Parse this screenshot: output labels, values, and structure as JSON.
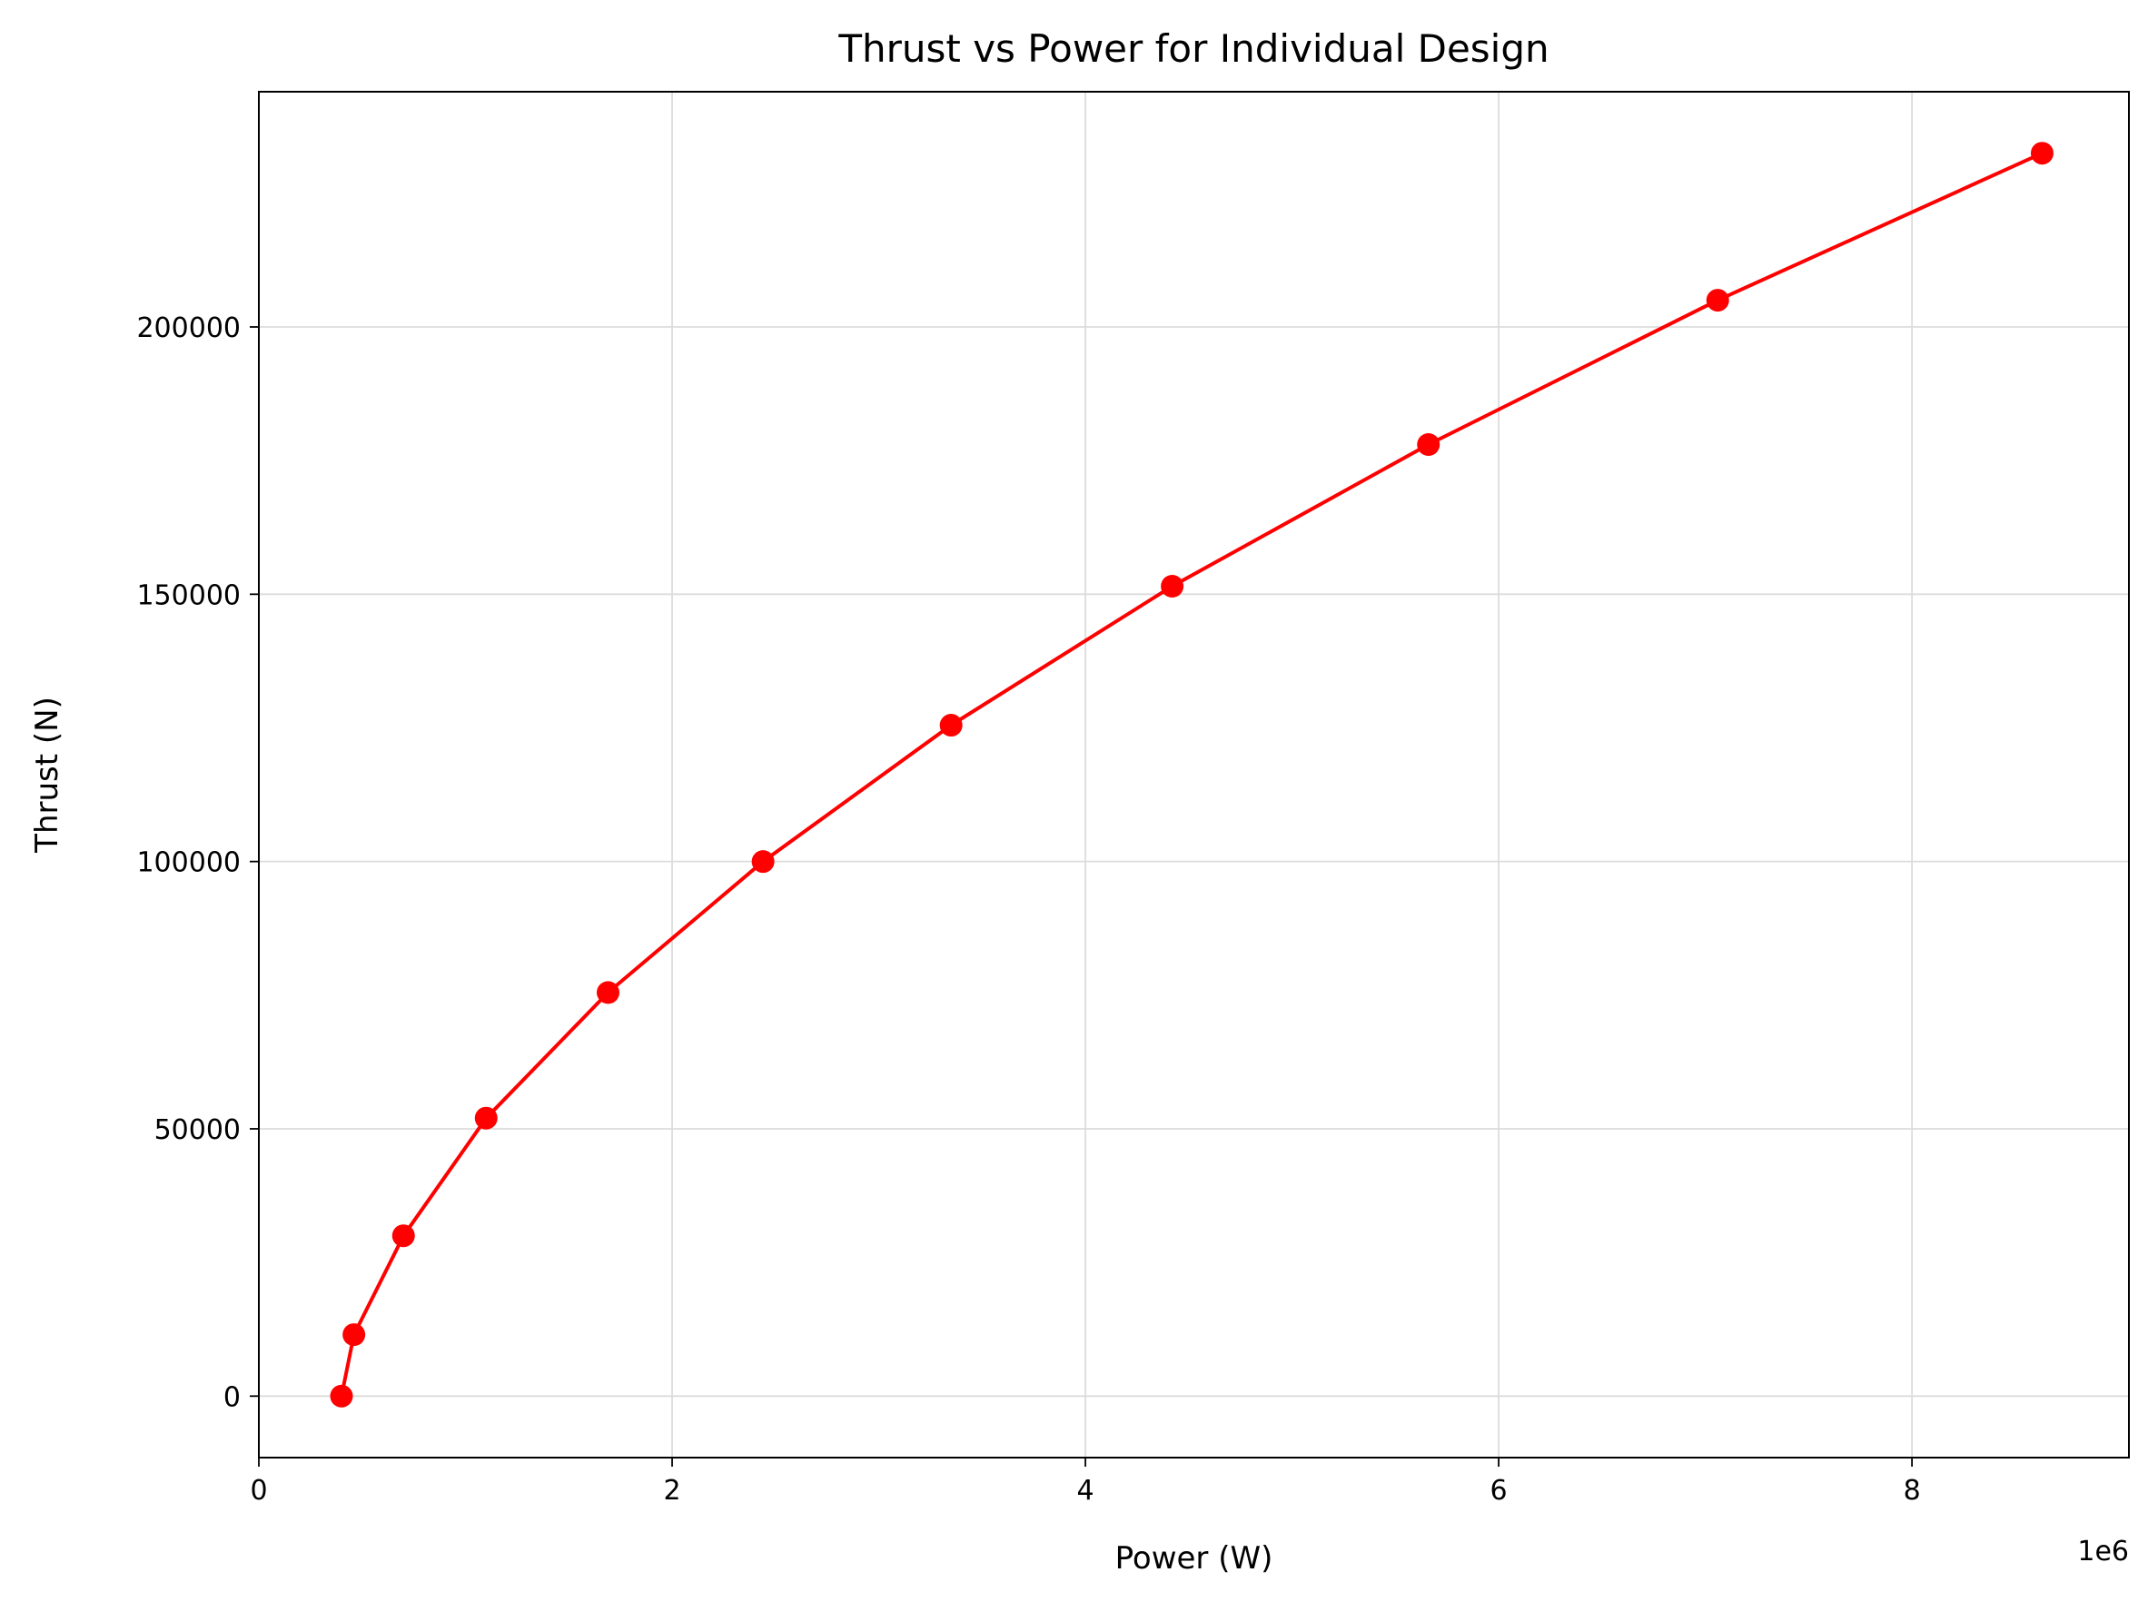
{
  "chart_data": {
    "type": "line",
    "title": "Thrust vs Power for Individual Design",
    "xlabel": "Power (W)",
    "ylabel": "Thrust (N)",
    "x_offset_label": "1e6",
    "xlim": [
      0,
      9.05
    ],
    "ylim": [
      -11500,
      244000
    ],
    "x_ticks": [
      0,
      2,
      4,
      6,
      8
    ],
    "x_tick_labels": [
      "0",
      "2",
      "4",
      "6",
      "8"
    ],
    "y_ticks": [
      0,
      50000,
      100000,
      150000,
      200000
    ],
    "y_tick_labels": [
      "0",
      "50000",
      "100000",
      "150000",
      "200000"
    ],
    "grid": true,
    "series": [
      {
        "color": "#ff0000",
        "marker": "circle",
        "x": [
          0.4,
          0.46,
          0.7,
          1.1,
          1.69,
          2.44,
          3.35,
          4.42,
          5.66,
          7.06,
          8.63
        ],
        "y": [
          0,
          11500,
          30000,
          52000,
          75500,
          100000,
          125500,
          151500,
          178000,
          205000,
          232500
        ]
      }
    ]
  }
}
